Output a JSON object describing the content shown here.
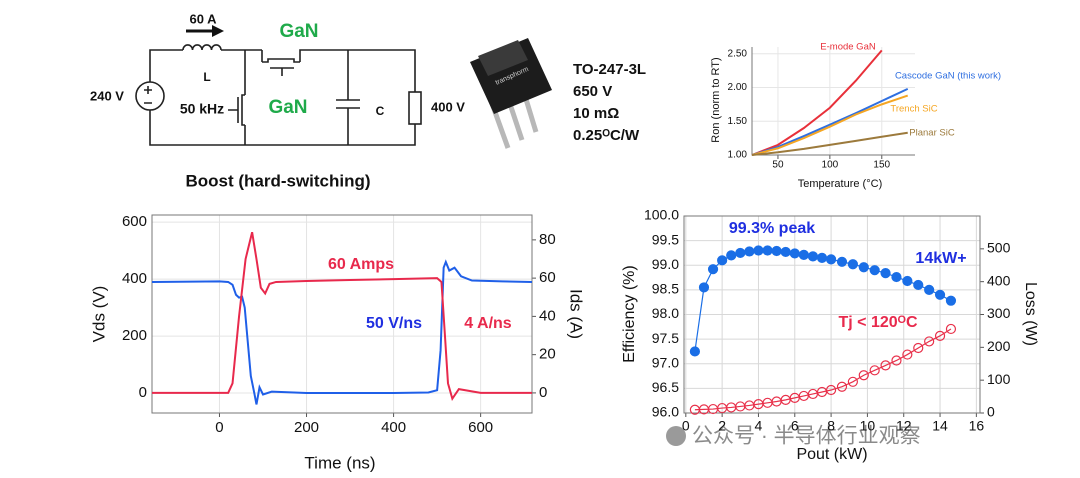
{
  "circuit": {
    "current": "60 A",
    "inductor": "L",
    "switch_top": "GaN",
    "switch_bottom": "GaN",
    "source": "240 V",
    "frequency": "50 kHz",
    "capacitor": "C",
    "output": "400 V",
    "caption": "Boost (hard-switching)"
  },
  "package": {
    "marking": "transphorm",
    "specs": [
      "TO-247-3L",
      "650 V",
      "10 mΩ",
      "0.25ᴼC/W"
    ]
  },
  "watermark": "公众号 · 半导体行业观察",
  "chart_data": [
    {
      "type": "line",
      "xlabel": "Temperature (°C)",
      "ylabel": "Ron (norm to RT)",
      "xlim": [
        25,
        182
      ],
      "ylim": [
        1.0,
        2.6
      ],
      "xticks": [
        50,
        100,
        150
      ],
      "yticks": [
        {
          "value": 1.0,
          "label": "1.00"
        },
        {
          "value": 1.5,
          "label": "1.50"
        },
        {
          "value": 2.0,
          "label": "2.00"
        },
        {
          "value": 2.5,
          "label": "2.50"
        }
      ],
      "grid": true,
      "series": [
        {
          "name": "E-mode GaN",
          "color": "#e8303a",
          "x": [
            25,
            50,
            75,
            100,
            125,
            150
          ],
          "values": [
            1.0,
            1.15,
            1.4,
            1.7,
            2.1,
            2.55
          ]
        },
        {
          "name": "Cascode GaN (this work)",
          "color": "#2f6fe0",
          "x": [
            25,
            50,
            75,
            100,
            125,
            150,
            175
          ],
          "values": [
            1.0,
            1.12,
            1.28,
            1.45,
            1.62,
            1.8,
            1.98
          ]
        },
        {
          "name": "Trench SiC",
          "color": "#f5a623",
          "x": [
            25,
            50,
            75,
            100,
            125,
            150,
            175
          ],
          "values": [
            1.0,
            1.1,
            1.25,
            1.42,
            1.6,
            1.75,
            1.88
          ]
        },
        {
          "name": "Planar SiC",
          "color": "#9c7a3c",
          "x": [
            25,
            50,
            75,
            100,
            125,
            150,
            175
          ],
          "values": [
            1.0,
            1.04,
            1.09,
            1.15,
            1.21,
            1.27,
            1.33
          ]
        }
      ]
    },
    {
      "type": "line",
      "xlabel": "Time (ns)",
      "ylabel": "Vds (V)",
      "y2label": "Ids (A)",
      "xlim": [
        -155,
        718
      ],
      "ylim": [
        -70,
        625
      ],
      "y2lim": [
        -10.5,
        93
      ],
      "xticks": [
        0,
        200,
        400,
        600
      ],
      "yticks": [
        0,
        200,
        400,
        600
      ],
      "y2ticks": [
        0,
        20,
        40,
        60,
        80
      ],
      "grid": true,
      "series": [
        {
          "color": "#1f5fe8",
          "x": [
            -155,
            0,
            20,
            30,
            38,
            45,
            52,
            58,
            65,
            72,
            80,
            85,
            92,
            100,
            120,
            200,
            300,
            400,
            480,
            500,
            508,
            515,
            520,
            528,
            540,
            555,
            580,
            650,
            718
          ],
          "values": [
            390,
            392,
            390,
            380,
            345,
            335,
            338,
            300,
            180,
            60,
            0,
            -40,
            20,
            -5,
            5,
            0,
            0,
            0,
            2,
            10,
            150,
            440,
            460,
            430,
            440,
            410,
            395,
            392,
            390
          ]
        },
        {
          "color": "#e8294c",
          "axis": "y2",
          "x": [
            -155,
            20,
            30,
            45,
            60,
            75,
            85,
            95,
            105,
            115,
            130,
            200,
            300,
            400,
            500,
            510,
            518,
            525,
            535,
            550,
            600,
            718
          ],
          "values": [
            0,
            0,
            5,
            40,
            70,
            84,
            70,
            55,
            52,
            57,
            58,
            58.5,
            59,
            59.5,
            60,
            58,
            30,
            5,
            -3,
            2,
            0,
            0
          ]
        }
      ],
      "annotations": [
        {
          "text": "60 Amps",
          "color": "#e8294c"
        },
        {
          "text": "50 V/ns",
          "color": "#1f2fe0"
        },
        {
          "text": "4 A/ns",
          "color": "#e8294c"
        }
      ]
    },
    {
      "type": "line",
      "xlabel": "Pout (kW)",
      "ylabel": "Efficiency (%)",
      "y2label": "Loss (W)",
      "xlim": [
        -0.1,
        16.2
      ],
      "ylim": [
        96.0,
        100.0
      ],
      "y2lim": [
        0,
        600
      ],
      "xticks": [
        0,
        2,
        4,
        6,
        8,
        10,
        12,
        14,
        16
      ],
      "yticks": [
        {
          "value": 96.0,
          "label": "96.0"
        },
        96.5,
        {
          "value": 97.0,
          "label": "97.0"
        },
        97.5,
        {
          "value": 98.0,
          "label": "98.0"
        },
        98.5,
        {
          "value": 99.0,
          "label": "99.0"
        },
        99.5,
        {
          "value": 100.0,
          "label": "100.0"
        }
      ],
      "y2ticks": [
        0,
        100,
        200,
        300,
        400,
        500
      ],
      "grid": true,
      "x": [
        0.5,
        1,
        1.5,
        2,
        2.5,
        3,
        3.5,
        4,
        4.5,
        5,
        5.5,
        6,
        6.5,
        7,
        7.5,
        8,
        8.6,
        9.2,
        9.8,
        10.4,
        11,
        11.6,
        12.2,
        12.8,
        13.4,
        14,
        14.6
      ],
      "series": [
        {
          "color": "#1a6ee6",
          "marker": "filled",
          "values": [
            97.25,
            98.55,
            98.92,
            99.1,
            99.2,
            99.25,
            99.28,
            99.3,
            99.3,
            99.29,
            99.27,
            99.24,
            99.21,
            99.18,
            99.15,
            99.12,
            99.07,
            99.02,
            98.96,
            98.9,
            98.84,
            98.76,
            98.68,
            98.6,
            98.5,
            98.4,
            98.28
          ]
        },
        {
          "color": "#e8304a",
          "marker": "hollow",
          "axis": "y2",
          "values": [
            10,
            11,
            12,
            15,
            17,
            20,
            23,
            27,
            31,
            35,
            40,
            46,
            52,
            58,
            64,
            70,
            80,
            95,
            115,
            130,
            145,
            160,
            178,
            198,
            218,
            235,
            256
          ]
        }
      ],
      "annotations": [
        {
          "text": "99.3% peak",
          "color": "#1f2fe0"
        },
        {
          "text": "14kW+",
          "color": "#1f2fe0"
        },
        {
          "text": "Tj < 120ᴼC",
          "color": "#e8294c"
        }
      ]
    }
  ]
}
